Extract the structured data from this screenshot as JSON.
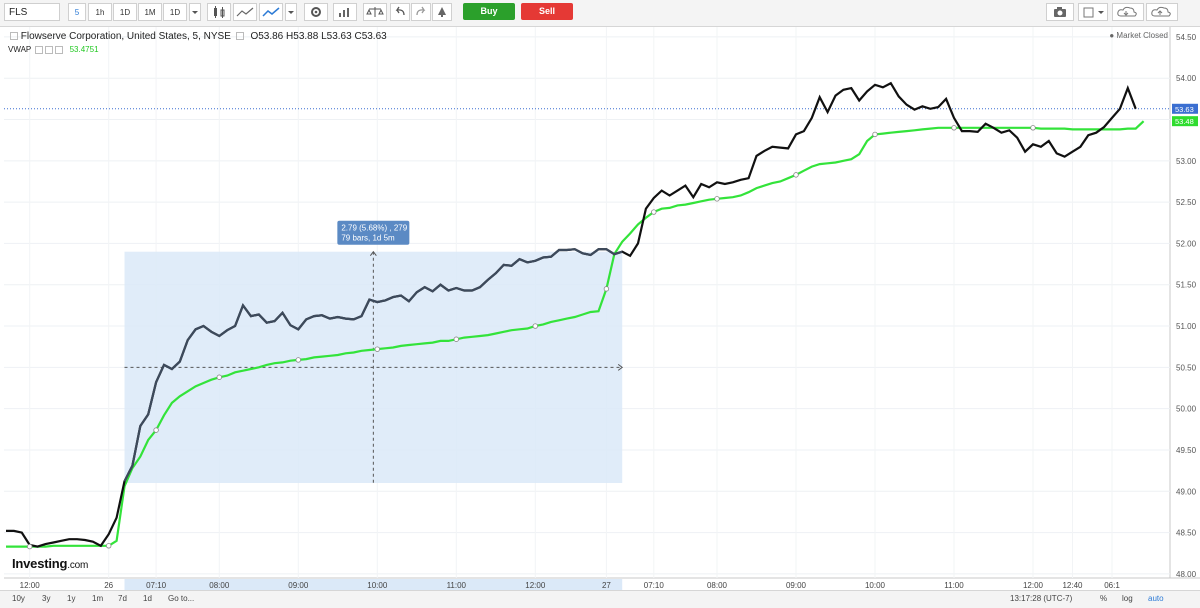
{
  "toolbar": {
    "symbol": "FLS",
    "intervals": [
      {
        "label": "5",
        "active": true
      },
      {
        "label": "1h",
        "active": false
      },
      {
        "label": "1D",
        "active": false
      },
      {
        "label": "1M",
        "active": false
      },
      {
        "label": "1D",
        "active": false
      }
    ],
    "buy_label": "Buy",
    "sell_label": "Sell",
    "icons": [
      "candlestick-icon",
      "area-chart-icon",
      "line-chart-icon",
      "dropdown-arrow-icon",
      "settings-gear-icon",
      "bar-chart-icon",
      "balance-scale-icon",
      "undo-icon",
      "redo-icon",
      "alert-bell-icon",
      "camera-icon",
      "fill-color-icon",
      "cloud-download-icon",
      "cloud-upload-icon"
    ]
  },
  "legend": {
    "title": "Flowserve Corporation, United States, 5, NYSE",
    "open_label": "O",
    "open": "53.86",
    "high_label": "H",
    "high": "53.88",
    "low_label": "L",
    "low": "53.63",
    "close_label": "C",
    "close": "53.63",
    "indicator": "VWAP",
    "indicator_value": "53.4751",
    "market_status": "Market Closed"
  },
  "measure_tooltip": {
    "line1": "2.79 (5.68%) , 279",
    "line2": "79 bars, 1d 5m"
  },
  "price_badges": {
    "last": "53.63",
    "vwap": "53.48"
  },
  "time_labels": [
    "12:00",
    "26",
    "07:10",
    "08:00",
    "09:00",
    "10:00",
    "11:00",
    "12:00",
    "27",
    "07:10",
    "08:00",
    "09:00",
    "10:00",
    "11:00",
    "12:00",
    "12:40",
    "06:1"
  ],
  "bottom": {
    "ranges": [
      "10y",
      "3y",
      "1y",
      "1m",
      "7d",
      "1d",
      "Go to..."
    ],
    "clock": "13:17:28 (UTC-7)",
    "percent": "%",
    "log": "log",
    "auto": "auto"
  },
  "logo": {
    "main": "Investing",
    "suffix": ".com"
  },
  "colors": {
    "price_line": "#111111",
    "vwap_line": "#33e33a",
    "measure_fill": "#dbe9f8",
    "tooltip_bg": "#5b8ac4"
  },
  "chart_data": {
    "type": "line",
    "title": "Flowserve Corporation, United States, 5, NYSE",
    "x_ticks": [
      {
        "label": "12:00",
        "i": 3
      },
      {
        "label": "26",
        "i": 13
      },
      {
        "label": "07:10",
        "i": 19
      },
      {
        "label": "08:00",
        "i": 27
      },
      {
        "label": "09:00",
        "i": 37
      },
      {
        "label": "10:00",
        "i": 47
      },
      {
        "label": "11:00",
        "i": 57
      },
      {
        "label": "12:00",
        "i": 67
      },
      {
        "label": "27",
        "i": 76
      },
      {
        "label": "07:10",
        "i": 82
      },
      {
        "label": "08:00",
        "i": 90
      },
      {
        "label": "09:00",
        "i": 100
      },
      {
        "label": "10:00",
        "i": 110
      },
      {
        "label": "11:00",
        "i": 120
      },
      {
        "label": "12:00",
        "i": 130
      },
      {
        "label": "12:40",
        "i": 135
      },
      {
        "label": "06:1",
        "i": 140
      }
    ],
    "ylim": [
      47.95,
      54.62
    ],
    "y_ticks": [
      48.0,
      48.5,
      49.0,
      49.5,
      50.0,
      50.5,
      51.0,
      51.5,
      52.0,
      52.5,
      53.0,
      53.5,
      54.0,
      54.5
    ],
    "y_tick_labels": [
      "48.00",
      "48.50",
      "49.00",
      "49.50",
      "50.00",
      "50.50",
      "51.00",
      "51.50",
      "52.00",
      "52.50",
      "53.00",
      "53.50",
      "54.00",
      "54.50"
    ],
    "series": [
      {
        "name": "FLS",
        "values": [
          48.52,
          48.52,
          48.5,
          48.35,
          48.33,
          48.36,
          48.38,
          48.4,
          48.42,
          48.42,
          48.41,
          48.39,
          48.34,
          48.48,
          48.68,
          49.12,
          49.31,
          49.79,
          49.93,
          50.32,
          50.53,
          50.48,
          50.57,
          50.83,
          50.96,
          51.0,
          50.93,
          50.88,
          50.95,
          51.0,
          51.25,
          51.12,
          51.14,
          51.04,
          51.06,
          51.16,
          51.01,
          50.96,
          51.08,
          51.12,
          51.13,
          51.09,
          51.11,
          51.09,
          51.08,
          51.12,
          51.32,
          51.29,
          51.31,
          51.35,
          51.37,
          51.3,
          51.41,
          51.47,
          51.42,
          51.5,
          51.43,
          51.46,
          51.43,
          51.43,
          51.47,
          51.56,
          51.64,
          51.74,
          51.73,
          51.81,
          51.77,
          51.79,
          51.83,
          51.84,
          51.92,
          51.92,
          51.93,
          51.88,
          51.86,
          51.93,
          51.93,
          51.87,
          51.9,
          51.85,
          52.0,
          52.42,
          52.55,
          52.64,
          52.58,
          52.64,
          52.7,
          52.56,
          52.72,
          52.68,
          52.74,
          52.72,
          52.74,
          52.77,
          52.79,
          53.06,
          53.12,
          53.17,
          53.16,
          53.15,
          53.32,
          53.36,
          53.52,
          53.77,
          53.59,
          53.79,
          53.86,
          53.88,
          53.73,
          53.84,
          53.92,
          53.89,
          53.94,
          53.78,
          53.68,
          53.62,
          53.66,
          53.63,
          53.65,
          53.75,
          53.52,
          53.36,
          53.36,
          53.35,
          53.45,
          53.4,
          53.34,
          53.37,
          53.28,
          53.11,
          53.2,
          53.17,
          53.24,
          53.09,
          53.05,
          53.11,
          53.17,
          53.31,
          53.34,
          53.41,
          53.52,
          53.63,
          53.88,
          53.63
        ]
      },
      {
        "name": "VWAP",
        "values": [
          48.33,
          48.33,
          48.33,
          48.33,
          48.33,
          48.33,
          48.34,
          48.34,
          48.34,
          48.34,
          48.34,
          48.34,
          48.34,
          48.34,
          48.4,
          49.06,
          49.28,
          49.42,
          49.62,
          49.74,
          49.92,
          50.07,
          50.15,
          50.21,
          50.27,
          50.31,
          50.35,
          50.38,
          50.4,
          50.44,
          50.46,
          50.48,
          50.5,
          50.53,
          50.55,
          50.56,
          50.58,
          50.59,
          50.6,
          50.62,
          50.63,
          50.64,
          50.65,
          50.67,
          50.68,
          50.7,
          50.71,
          50.72,
          50.73,
          50.74,
          50.76,
          50.77,
          50.78,
          50.79,
          50.8,
          50.82,
          50.82,
          50.84,
          50.86,
          50.87,
          50.88,
          50.89,
          50.91,
          50.93,
          50.95,
          50.96,
          50.97,
          51.0,
          51.02,
          51.05,
          51.07,
          51.09,
          51.11,
          51.14,
          51.17,
          51.18,
          51.45,
          51.87,
          52.02,
          52.12,
          52.23,
          52.31,
          52.38,
          52.42,
          52.43,
          52.46,
          52.47,
          52.49,
          52.51,
          52.53,
          52.54,
          52.55,
          52.56,
          52.58,
          52.62,
          52.67,
          52.7,
          52.73,
          52.75,
          52.79,
          52.83,
          52.88,
          52.93,
          52.96,
          52.97,
          52.98,
          53.0,
          53.02,
          53.08,
          53.24,
          53.32,
          53.33,
          53.34,
          53.35,
          53.36,
          53.37,
          53.38,
          53.39,
          53.4,
          53.4,
          53.4,
          53.4,
          53.4,
          53.4,
          53.4,
          53.4,
          53.4,
          53.4,
          53.4,
          53.4,
          53.4,
          53.39,
          53.39,
          53.39,
          53.39,
          53.38,
          53.38,
          53.38,
          53.38,
          53.38,
          53.38,
          53.38,
          53.39,
          53.39,
          53.48
        ]
      }
    ],
    "vwap_markers_i": [
      3,
      13,
      19,
      27,
      37,
      47,
      57,
      67,
      76,
      82,
      90,
      100,
      110,
      120,
      130
    ],
    "measurement": {
      "start_i": 15,
      "end_i": 78,
      "low": 49.1,
      "high": 51.9,
      "mid_price": 50.5
    },
    "last_price": 53.63,
    "grid": true
  }
}
